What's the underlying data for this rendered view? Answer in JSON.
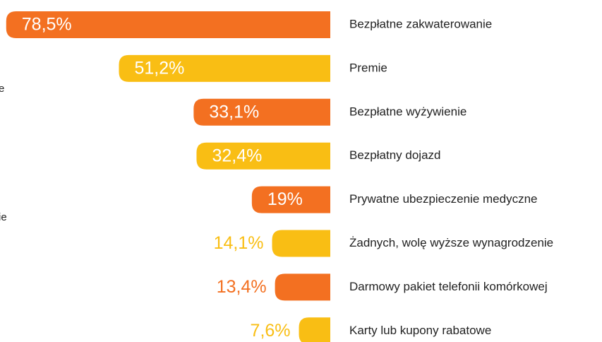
{
  "chart_data": {
    "type": "hbar",
    "categories": [
      "Bezpłatne zakwaterowanie",
      "Premie",
      "Bezpłatne wyżywienie",
      "Bezpłatny dojazd",
      "Prywatne ubezpieczenie medyczne",
      "Żadnych, wolę wyższe wynagrodzenie",
      "Darmowy pakiet telefonii komórkowej",
      "Karty lub kupony rabatowe"
    ],
    "values": [
      78.5,
      51.2,
      33.1,
      32.4,
      19,
      14.1,
      13.4,
      7.6
    ],
    "value_labels": [
      "78,5%",
      "51,2%",
      "33,1%",
      "32,4%",
      "19%",
      "14,1%",
      "13,4%",
      "7,6%"
    ],
    "colors": [
      "#f37021",
      "#f9be14",
      "#f37021",
      "#f9be14",
      "#f37021",
      "#f9be14",
      "#f37021",
      "#f9be14"
    ],
    "xlim": [
      0,
      80
    ],
    "annotations": [
      "e",
      "ie"
    ]
  }
}
